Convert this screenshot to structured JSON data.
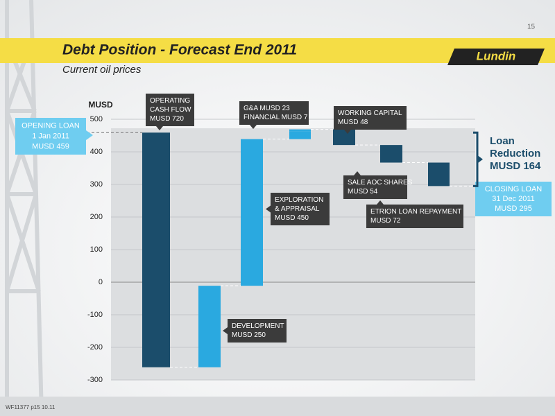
{
  "page_number": "15",
  "title": "Debt Position - Forecast End 2011",
  "subtitle": "Current oil prices",
  "logo": "Lundin",
  "footer": "WF11377 p15 10.11",
  "chart_data": {
    "type": "waterfall",
    "ylabel": "MUSD",
    "ylim": [
      -300,
      500
    ],
    "yticks": [
      -300,
      -200,
      -100,
      0,
      100,
      200,
      300,
      400,
      500
    ],
    "grid": true,
    "start": {
      "lines": [
        "OPENING LOAN",
        "1 Jan 2011",
        "MUSD 459"
      ],
      "value": 459,
      "color": "#6fcdf0"
    },
    "steps": [
      {
        "lines": [
          "OPERATING",
          "CASH FLOW",
          "MUSD 720"
        ],
        "values": [
          720
        ],
        "direction": "down",
        "color": "#1b4d6b"
      },
      {
        "lines": [
          "DEVELOPMENT",
          "MUSD  250"
        ],
        "values": [
          250
        ],
        "direction": "up",
        "color": "#2aa9e0"
      },
      {
        "lines": [
          "EXPLORATION",
          "& APPRAISAL",
          "MUSD  450"
        ],
        "values": [
          450
        ],
        "direction": "up",
        "color": "#2aa9e0"
      },
      {
        "lines": [
          "G&A MUSD 23",
          "FINANCIAL MUSD 7"
        ],
        "values": [
          23,
          7
        ],
        "direction": "up",
        "color": "#2aa9e0"
      },
      {
        "lines": [
          "WORKING CAPITAL",
          "MUSD 48"
        ],
        "values": [
          48
        ],
        "direction": "down",
        "color": "#1b4d6b"
      },
      {
        "lines": [
          "SALE AOC SHARES",
          "MUSD 54"
        ],
        "values": [
          54
        ],
        "direction": "down",
        "color": "#1b4d6b"
      },
      {
        "lines": [
          "ETRION LOAN REPAYMENT",
          "MUSD 72"
        ],
        "values": [
          72
        ],
        "direction": "down",
        "color": "#1b4d6b"
      }
    ],
    "end": {
      "lines": [
        "CLOSING LOAN",
        "31 Dec 2011",
        "MUSD 295"
      ],
      "value": 295,
      "color": "#6fcdf0"
    },
    "reduction": {
      "lines": [
        "Loan",
        "Reduction",
        "MUSD 164"
      ],
      "value": 164,
      "color": "#1b4d6b"
    }
  }
}
